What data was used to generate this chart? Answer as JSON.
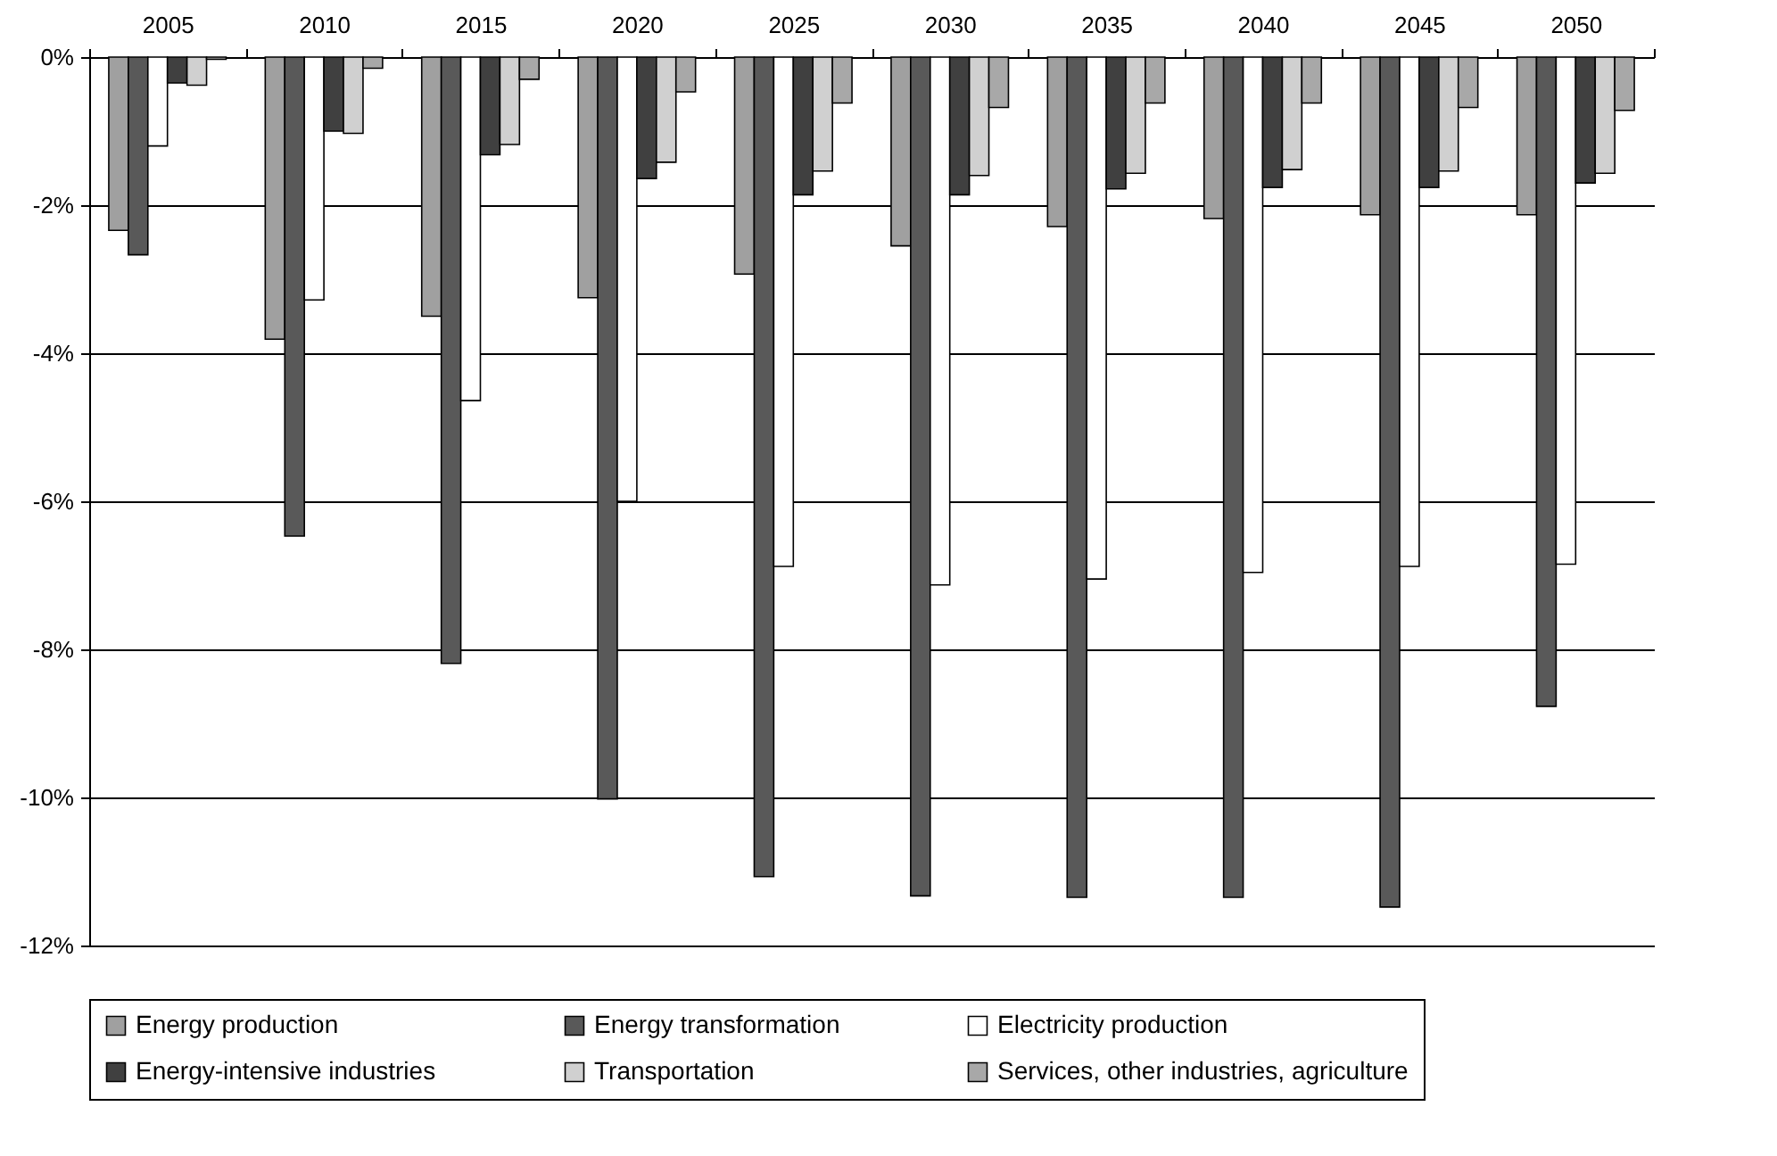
{
  "chart_data": {
    "type": "bar",
    "categories": [
      "2005",
      "2010",
      "2015",
      "2020",
      "2025",
      "2030",
      "2035",
      "2040",
      "2045",
      "2050"
    ],
    "series": [
      {
        "name": "Energy production",
        "color": "#a0a0a0",
        "values": [
          -2.34,
          -3.81,
          -3.5,
          -3.25,
          -2.93,
          -2.55,
          -2.29,
          -2.18,
          -2.13,
          -2.13
        ]
      },
      {
        "name": "Energy transformation",
        "color": "#595959",
        "values": [
          -2.67,
          -6.47,
          -8.19,
          -10.02,
          -11.07,
          -11.33,
          -11.35,
          -11.35,
          -11.48,
          -8.77
        ]
      },
      {
        "name": "Electricity production",
        "color": "#ffffff",
        "values": [
          -1.2,
          -3.28,
          -4.64,
          -6.0,
          -6.88,
          -7.13,
          -7.05,
          -6.96,
          -6.88,
          -6.85
        ]
      },
      {
        "name": "Energy-intensive industries",
        "color": "#404040",
        "values": [
          -0.35,
          -1.0,
          -1.32,
          -1.64,
          -1.86,
          -1.86,
          -1.78,
          -1.76,
          -1.76,
          -1.7
        ]
      },
      {
        "name": "Transportation",
        "color": "#d0d0d0",
        "values": [
          -0.38,
          -1.03,
          -1.18,
          -1.42,
          -1.54,
          -1.6,
          -1.57,
          -1.52,
          -1.54,
          -1.57
        ]
      },
      {
        "name": "Services, other industries, agriculture",
        "color": "#a8a8a8",
        "values": [
          -0.03,
          -0.15,
          -0.3,
          -0.47,
          -0.62,
          -0.68,
          -0.62,
          -0.62,
          -0.68,
          -0.72
        ]
      }
    ],
    "ylim": [
      -12,
      0
    ],
    "yticks": [
      {
        "value": 0,
        "label": "0%"
      },
      {
        "value": -2,
        "label": "-2%"
      },
      {
        "value": -4,
        "label": "-4%"
      },
      {
        "value": -6,
        "label": "-6%"
      },
      {
        "value": -8,
        "label": "-8%"
      },
      {
        "value": -10,
        "label": "-10%"
      },
      {
        "value": -12,
        "label": "-12%"
      }
    ],
    "grid": "y",
    "legend": "bottom"
  }
}
